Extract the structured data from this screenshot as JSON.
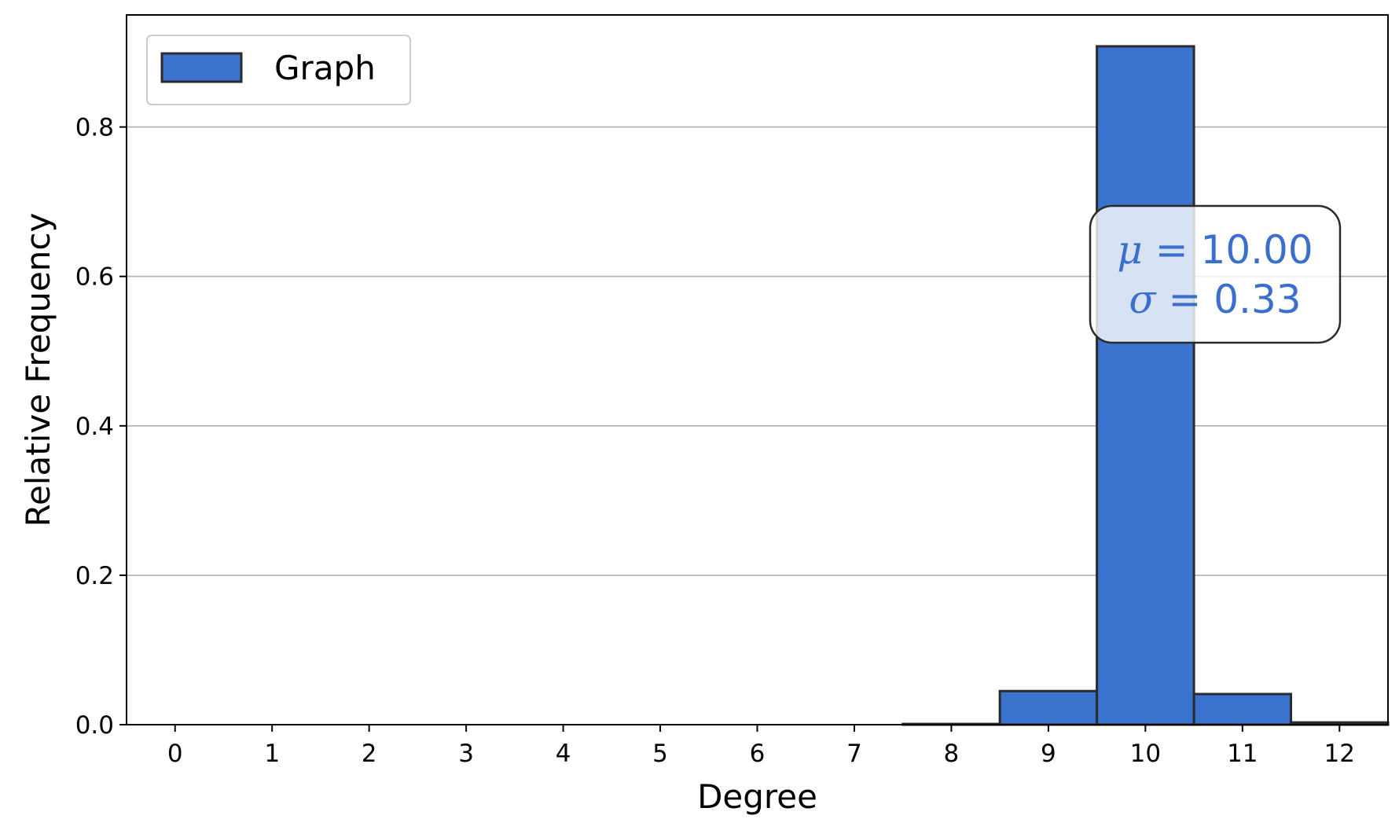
{
  "chart_data": {
    "type": "bar",
    "xlabel": "Degree",
    "ylabel": "Relative Frequency",
    "categories": [
      "0",
      "1",
      "2",
      "3",
      "4",
      "5",
      "6",
      "7",
      "8",
      "9",
      "10",
      "11",
      "12"
    ],
    "series": [
      {
        "name": "Graph",
        "values": [
          0,
          0,
          0,
          0,
          0,
          0,
          0,
          0,
          0.001,
          0.045,
          0.908,
          0.041,
          0.003
        ]
      }
    ],
    "xlim": [
      -0.5,
      12.5
    ],
    "ylim": [
      0,
      0.95
    ],
    "yticks": [
      "0.0",
      "0.2",
      "0.4",
      "0.6",
      "0.8"
    ],
    "ytick_values": [
      0,
      0.2,
      0.4,
      0.6,
      0.8
    ],
    "grid": "y",
    "legend_position": "top-left",
    "bar_color": "#3a73cd",
    "edge_color": "#2b2b2b",
    "annotation": {
      "mu_symbol": "μ",
      "mu_text": " = 10.00",
      "sigma_symbol": "σ",
      "sigma_text": " = 0.33",
      "color": "#3a6fcd",
      "position": "upper-right"
    }
  }
}
